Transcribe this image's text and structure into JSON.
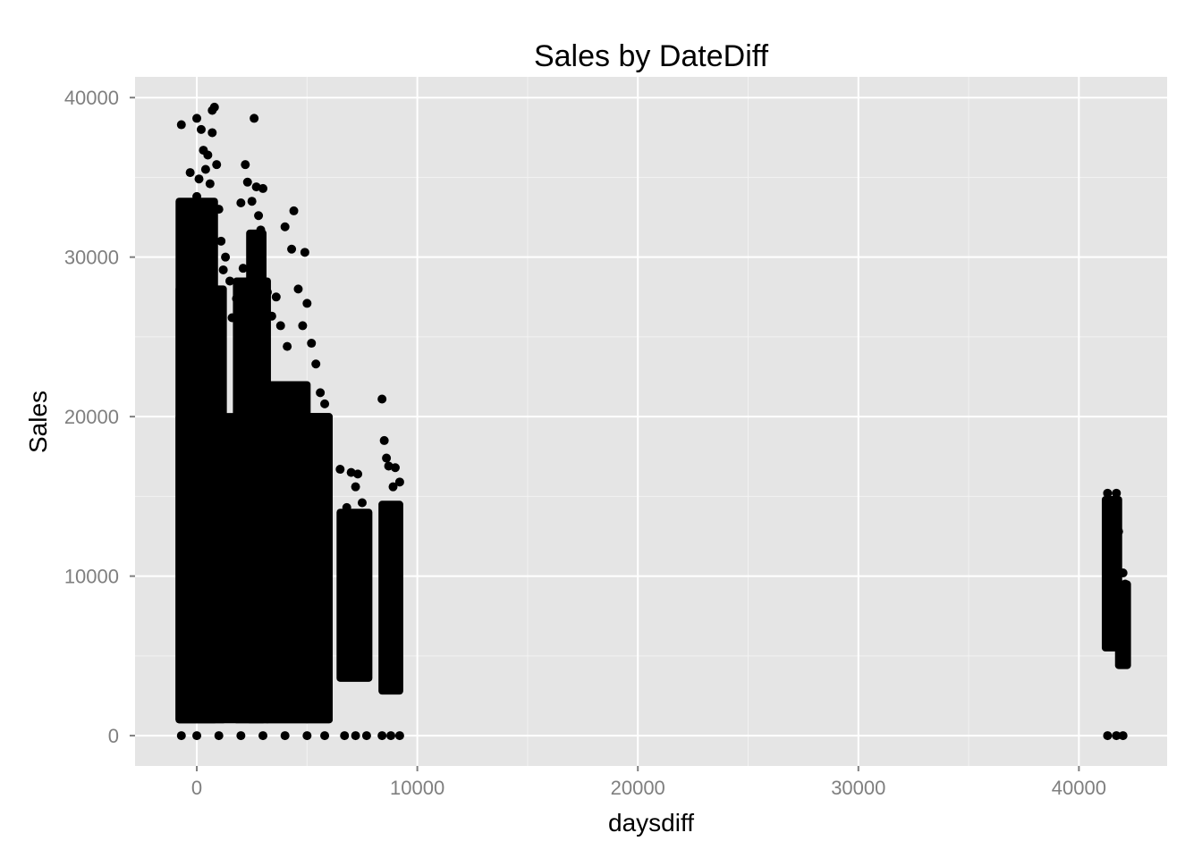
{
  "chart_data": {
    "type": "scatter",
    "title": "Sales by DateDiff",
    "xlabel": "daysdiff",
    "ylabel": "Sales",
    "xlim": [
      -2800,
      44000
    ],
    "ylim": [
      -1900,
      41300
    ],
    "xticks": [
      0,
      10000,
      20000,
      30000,
      40000
    ],
    "yticks": [
      0,
      10000,
      20000,
      30000,
      40000
    ],
    "xtick_labels": [
      "0",
      "10000",
      "20000",
      "30000",
      "40000"
    ],
    "ytick_labels": [
      "0",
      "10000",
      "20000",
      "30000",
      "40000"
    ],
    "grid": true,
    "legend": "none",
    "point_color": "#000000",
    "panel_color": "#e5e5e5",
    "grid_color": "#ffffff",
    "series": [
      {
        "points": [
          [
            -700,
            38300
          ],
          [
            -400,
            32000
          ],
          [
            -300,
            35300
          ],
          [
            0,
            38700
          ],
          [
            0,
            33800
          ],
          [
            100,
            34900
          ],
          [
            200,
            38000
          ],
          [
            300,
            36700
          ],
          [
            400,
            35500
          ],
          [
            500,
            36400
          ],
          [
            600,
            34600
          ],
          [
            700,
            37800
          ],
          [
            700,
            39200
          ],
          [
            800,
            39400
          ],
          [
            900,
            35800
          ],
          [
            1000,
            33000
          ],
          [
            1100,
            31000
          ],
          [
            1200,
            29200
          ],
          [
            1300,
            30000
          ],
          [
            1500,
            28500
          ],
          [
            1600,
            26200
          ],
          [
            1800,
            27400
          ],
          [
            2000,
            33400
          ],
          [
            2100,
            29300
          ],
          [
            2200,
            35800
          ],
          [
            2300,
            34700
          ],
          [
            2500,
            33500
          ],
          [
            2600,
            38700
          ],
          [
            2700,
            34400
          ],
          [
            2800,
            32600
          ],
          [
            2900,
            31700
          ],
          [
            3000,
            34300
          ],
          [
            3200,
            27800
          ],
          [
            3400,
            26300
          ],
          [
            3600,
            27500
          ],
          [
            3800,
            25700
          ],
          [
            4000,
            31900
          ],
          [
            4100,
            24400
          ],
          [
            4300,
            30500
          ],
          [
            4400,
            32900
          ],
          [
            4600,
            28000
          ],
          [
            4800,
            25700
          ],
          [
            4900,
            30300
          ],
          [
            5000,
            27100
          ],
          [
            5200,
            24600
          ],
          [
            5400,
            23300
          ],
          [
            5600,
            21500
          ],
          [
            5800,
            20800
          ],
          [
            6500,
            16700
          ],
          [
            6800,
            14300
          ],
          [
            7000,
            16500
          ],
          [
            7200,
            15600
          ],
          [
            7300,
            16400
          ],
          [
            7500,
            14600
          ],
          [
            7700,
            13800
          ],
          [
            8400,
            21100
          ],
          [
            8500,
            18500
          ],
          [
            8600,
            17400
          ],
          [
            8700,
            16900
          ],
          [
            8900,
            15600
          ],
          [
            9000,
            16800
          ],
          [
            9200,
            15900
          ],
          [
            41300,
            15200
          ],
          [
            41500,
            14500
          ],
          [
            41700,
            15200
          ],
          [
            41800,
            12800
          ],
          [
            42000,
            10200
          ],
          [
            42100,
            9500
          ],
          [
            -700,
            0
          ],
          [
            0,
            0
          ],
          [
            1000,
            0
          ],
          [
            2000,
            0
          ],
          [
            3000,
            0
          ],
          [
            4000,
            0
          ],
          [
            5000,
            0
          ],
          [
            5800,
            0
          ],
          [
            6700,
            0
          ],
          [
            7200,
            0
          ],
          [
            7700,
            0
          ],
          [
            8400,
            0
          ],
          [
            8800,
            0
          ],
          [
            9200,
            0
          ],
          [
            41300,
            0
          ],
          [
            41700,
            0
          ],
          [
            42000,
            0
          ]
        ],
        "dense_bands": [
          {
            "x": [
              -800,
              6000
            ],
            "y": [
              1000,
              20000
            ]
          },
          {
            "x": [
              -800,
              1200
            ],
            "y": [
              1000,
              28000
            ]
          },
          {
            "x": [
              -800,
              800
            ],
            "y": [
              1000,
              33500
            ]
          },
          {
            "x": [
              1800,
              3200
            ],
            "y": [
              1000,
              28500
            ]
          },
          {
            "x": [
              2400,
              3000
            ],
            "y": [
              1000,
              31500
            ]
          },
          {
            "x": [
              3200,
              5000
            ],
            "y": [
              1000,
              22000
            ]
          },
          {
            "x": [
              5000,
              6000
            ],
            "y": [
              1000,
              20000
            ]
          },
          {
            "x": [
              6500,
              7800
            ],
            "y": [
              3600,
              14000
            ]
          },
          {
            "x": [
              8400,
              9200
            ],
            "y": [
              2800,
              14500
            ]
          },
          {
            "x": [
              41200,
              41800
            ],
            "y": [
              5500,
              14800
            ]
          },
          {
            "x": [
              41800,
              42200
            ],
            "y": [
              4400,
              9500
            ]
          }
        ]
      }
    ]
  }
}
